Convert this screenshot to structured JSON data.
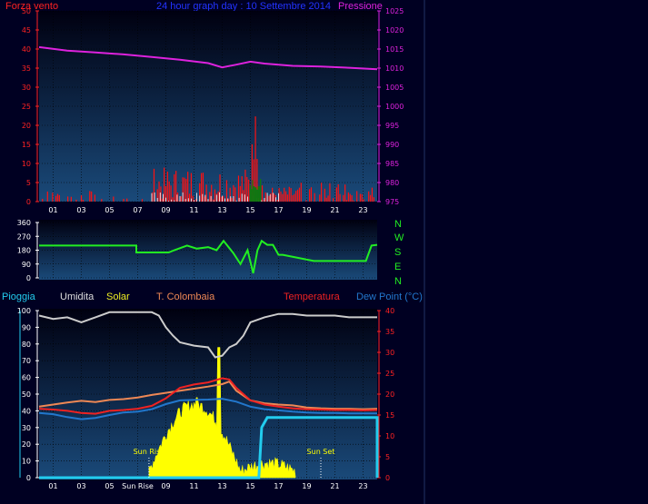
{
  "header": {
    "left_label": "Forza vento",
    "title": "24 hour graph day : 10 Settembre 2014",
    "right_label": "Pressione",
    "colors": {
      "left": "#ff2222",
      "title": "#2233ff",
      "right": "#dd22dd"
    }
  },
  "compass": [
    "N",
    "W",
    "S",
    "E",
    "N"
  ],
  "legend": {
    "pioggia": "Pioggia",
    "umidita": "Umidita",
    "solar": "Solar",
    "tcolombaia": "T. Colombaia",
    "temperatura": "Temperatura",
    "dewpoint": "Dew Point (°C)"
  },
  "annotations": {
    "sunrise": "Sun Rise",
    "sunset": "Sun Set",
    "sunrise_tick": "Sun Rise"
  },
  "chart_data": [
    {
      "type": "line",
      "name": "wind-pressure",
      "x_ticks": [
        "01",
        "03",
        "05",
        "07",
        "09",
        "11",
        "13",
        "15",
        "17",
        "19",
        "21",
        "23"
      ],
      "y_left_ticks": [
        "0",
        "5",
        "10",
        "15",
        "20",
        "25",
        "30",
        "35",
        "40",
        "45",
        "50"
      ],
      "y_right_ticks": [
        "975",
        "980",
        "985",
        "990",
        "995",
        "1000",
        "1005",
        "1010",
        "1015",
        "1020",
        "1025"
      ],
      "ylim_left": [
        0,
        50
      ],
      "ylim_right": [
        975,
        1025
      ],
      "series": [
        {
          "color": "#dd22dd",
          "axis": "right",
          "x": [
            0,
            2,
            4,
            6,
            8,
            10,
            12,
            13,
            14,
            15,
            16,
            18,
            20,
            22,
            24
          ],
          "values": [
            1015.5,
            1014.6,
            1014.1,
            1013.6,
            1012.9,
            1012.2,
            1011.3,
            1010.2,
            1010.9,
            1011.7,
            1011.2,
            1010.6,
            1010.4,
            1010.1,
            1009.7
          ]
        }
      ]
    },
    {
      "type": "line",
      "name": "wind-direction",
      "y_ticks": [
        "0",
        "90",
        "180",
        "270",
        "360"
      ],
      "ylim": [
        0,
        360
      ],
      "x_ticks": [],
      "series": [
        {
          "color": "#22ee22",
          "x": [
            0,
            6.9,
            6.9,
            9.2,
            9.6,
            10.5,
            11.2,
            12,
            12.6,
            13.1,
            13.8,
            14.3,
            14.8,
            15.2,
            15.5,
            15.8,
            16.2,
            16.6,
            17,
            17.3,
            19.5,
            19.5,
            23.2,
            23.6,
            24
          ],
          "values": [
            210,
            210,
            165,
            165,
            180,
            210,
            190,
            200,
            180,
            240,
            160,
            90,
            180,
            30,
            180,
            240,
            215,
            215,
            150,
            150,
            110,
            110,
            110,
            210,
            215
          ]
        }
      ]
    },
    {
      "type": "area",
      "name": "temperature-solar-humidity",
      "x_ticks": [
        "01",
        "03",
        "05",
        "Sun Rise",
        "09",
        "11",
        "13",
        "15",
        "17",
        "19",
        "21",
        "23"
      ],
      "y_left_ticks": [
        "0",
        "10",
        "20",
        "30",
        "40",
        "50",
        "60",
        "70",
        "80",
        "90",
        "100"
      ],
      "y_right_ticks": [
        "0",
        "5",
        "10",
        "15",
        "20",
        "25",
        "30",
        "35",
        "40"
      ],
      "ylim_left": [
        0,
        100
      ],
      "ylim_right": [
        0,
        40
      ],
      "series": [
        {
          "color": "#cccccc",
          "axis": "left",
          "x": [
            0,
            1,
            2,
            3,
            4,
            5,
            6,
            7,
            8,
            8.5,
            9,
            9.5,
            10,
            11,
            12,
            12.5,
            13,
            13.5,
            14,
            14.5,
            15,
            16,
            17,
            18,
            19,
            20,
            21,
            22,
            23,
            24
          ],
          "values": [
            97,
            95,
            96,
            93,
            96,
            99,
            99,
            99,
            99,
            97,
            90,
            85,
            81,
            79,
            78,
            72,
            73,
            78,
            80,
            85,
            93,
            96,
            98,
            98,
            97,
            97,
            97,
            96,
            96,
            96
          ]
        },
        {
          "color": "#ee8855",
          "axis": "right",
          "x": [
            0,
            1,
            2,
            3,
            4,
            5,
            6,
            7,
            8,
            9,
            10,
            11,
            12,
            13,
            13.5,
            14,
            15,
            16,
            17,
            18,
            19,
            20,
            21,
            22,
            23,
            24
          ],
          "values": [
            17,
            17.5,
            18,
            18.4,
            18.1,
            18.6,
            18.8,
            19.2,
            19.8,
            20.3,
            20.8,
            21.3,
            21.8,
            22.4,
            23,
            20.8,
            18.5,
            17.8,
            17.5,
            17.3,
            16.8,
            16.6,
            16.5,
            16.5,
            16.4,
            16.5
          ]
        },
        {
          "color": "#ee2222",
          "axis": "right",
          "x": [
            0,
            1,
            2,
            3,
            4,
            5,
            6,
            7,
            8,
            9,
            10,
            11,
            12,
            13,
            13.5,
            14,
            15,
            16,
            17,
            18,
            19,
            20,
            21,
            22,
            23,
            24
          ],
          "values": [
            16.5,
            16.3,
            16,
            15.5,
            15.3,
            16,
            16.2,
            16.5,
            17.2,
            19,
            21.5,
            22.3,
            22.8,
            23.8,
            23.5,
            21.5,
            18.5,
            17.5,
            17,
            16.6,
            16.4,
            16.3,
            16.2,
            16.2,
            16.1,
            16.2
          ]
        },
        {
          "color": "#2277cc",
          "axis": "right",
          "x": [
            0,
            1,
            2,
            3,
            4,
            5,
            6,
            7,
            8,
            9,
            10,
            11,
            12,
            13,
            14,
            15,
            16,
            17,
            18,
            19,
            20,
            21,
            22,
            23,
            24
          ],
          "values": [
            15.5,
            15.2,
            14.5,
            14,
            14.3,
            15,
            15.6,
            15.8,
            16.4,
            17.6,
            18.5,
            18.6,
            18.7,
            18.9,
            18.2,
            17,
            16.4,
            16.1,
            15.8,
            15.6,
            15.5,
            15.5,
            15.4,
            15.4,
            15.4
          ]
        },
        {
          "color": "#22ccee",
          "axis": "left",
          "x": [
            0,
            15.6,
            15.8,
            16.2,
            24,
            24
          ],
          "values": [
            0,
            0,
            30,
            36,
            36,
            0
          ]
        }
      ]
    }
  ]
}
